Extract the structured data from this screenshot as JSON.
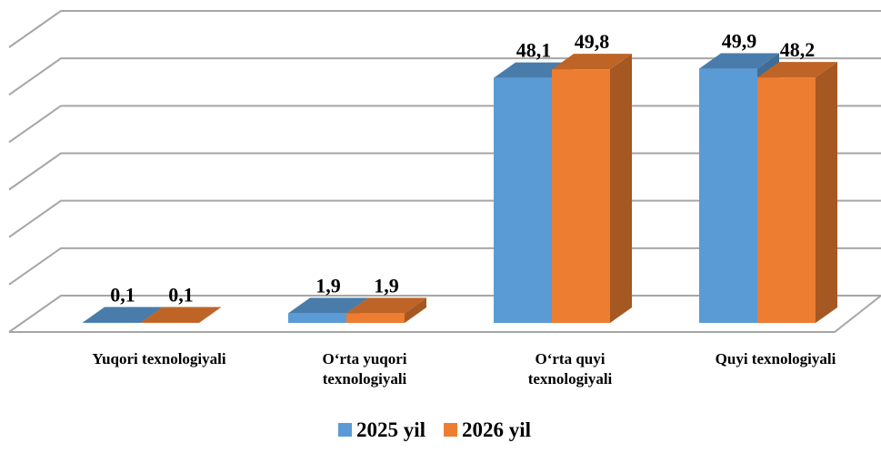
{
  "chart_data": {
    "type": "bar3d",
    "categories": [
      "Yuqori texnologiyali",
      "O‘rta yuqori texnologiyali",
      "O‘rta quyi texnologiyali",
      "Quyi texnologiyali"
    ],
    "series": [
      {
        "name": "2025 yil",
        "color": "#5b9bd5",
        "values": [
          0.1,
          1.9,
          48.1,
          49.9
        ],
        "value_labels": [
          "0,1",
          "1,9",
          "48,1",
          "49,9"
        ]
      },
      {
        "name": "2026 yil",
        "color": "#ed7d31",
        "values": [
          0.1,
          1.9,
          49.8,
          48.2
        ],
        "value_labels": [
          "0,1",
          "1,9",
          "49,8",
          "48,2"
        ]
      }
    ],
    "ylim": [
      0,
      60
    ],
    "yticks": [
      0,
      10,
      20,
      30,
      40,
      50,
      60
    ],
    "grid": true,
    "legend": "bottom"
  }
}
